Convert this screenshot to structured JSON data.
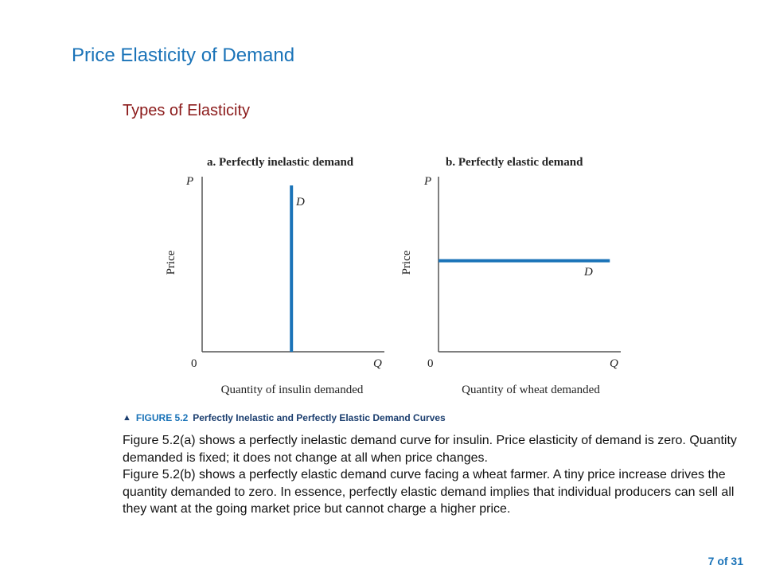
{
  "slide": {
    "title": "Price Elasticity of Demand",
    "subtitle": "Types of Elasticity",
    "page_number": "7 of 31"
  },
  "figure": {
    "marker": "▲",
    "number": "FIGURE 5.2",
    "caption": "Perfectly Inelastic and Perfectly Elastic Demand Curves"
  },
  "body": {
    "paragraph_a": "Figure 5.2(a) shows a perfectly inelastic demand curve for insulin. Price elasticity of demand is zero. Quantity demanded is fixed; it does not change at all when price changes.",
    "paragraph_b": "Figure 5.2(b) shows a perfectly elastic demand curve facing a wheat farmer. A tiny price increase drives the quantity demanded to zero. In essence, perfectly elastic demand implies that individual producers can sell all they want at the going market price but cannot charge a higher price."
  },
  "colors": {
    "title": "#1a73b8",
    "subtitle": "#8b1a1a",
    "curve": "#1a73b8",
    "axis": "#555555"
  },
  "chart_data": [
    {
      "type": "line",
      "title": "a. Perfectly inelastic demand",
      "ylabel": "Price",
      "xlabel": "Quantity of insulin demanded",
      "y_axis_label": "P",
      "x_axis_label": "Q",
      "origin_label": "0",
      "curve_label": "D",
      "xlim": [
        0,
        1
      ],
      "ylim": [
        0,
        1
      ],
      "series": [
        {
          "name": "D",
          "x": [
            0.49,
            0.49
          ],
          "y": [
            0,
            0.95
          ]
        }
      ]
    },
    {
      "type": "line",
      "title": "b. Perfectly elastic demand",
      "ylabel": "Price",
      "xlabel": "Quantity of wheat demanded",
      "y_axis_label": "P",
      "x_axis_label": "Q",
      "origin_label": "0",
      "curve_label": "D",
      "xlim": [
        0,
        1
      ],
      "ylim": [
        0,
        1
      ],
      "series": [
        {
          "name": "D",
          "x": [
            0,
            0.94
          ],
          "y": [
            0.52,
            0.52
          ]
        }
      ]
    }
  ]
}
